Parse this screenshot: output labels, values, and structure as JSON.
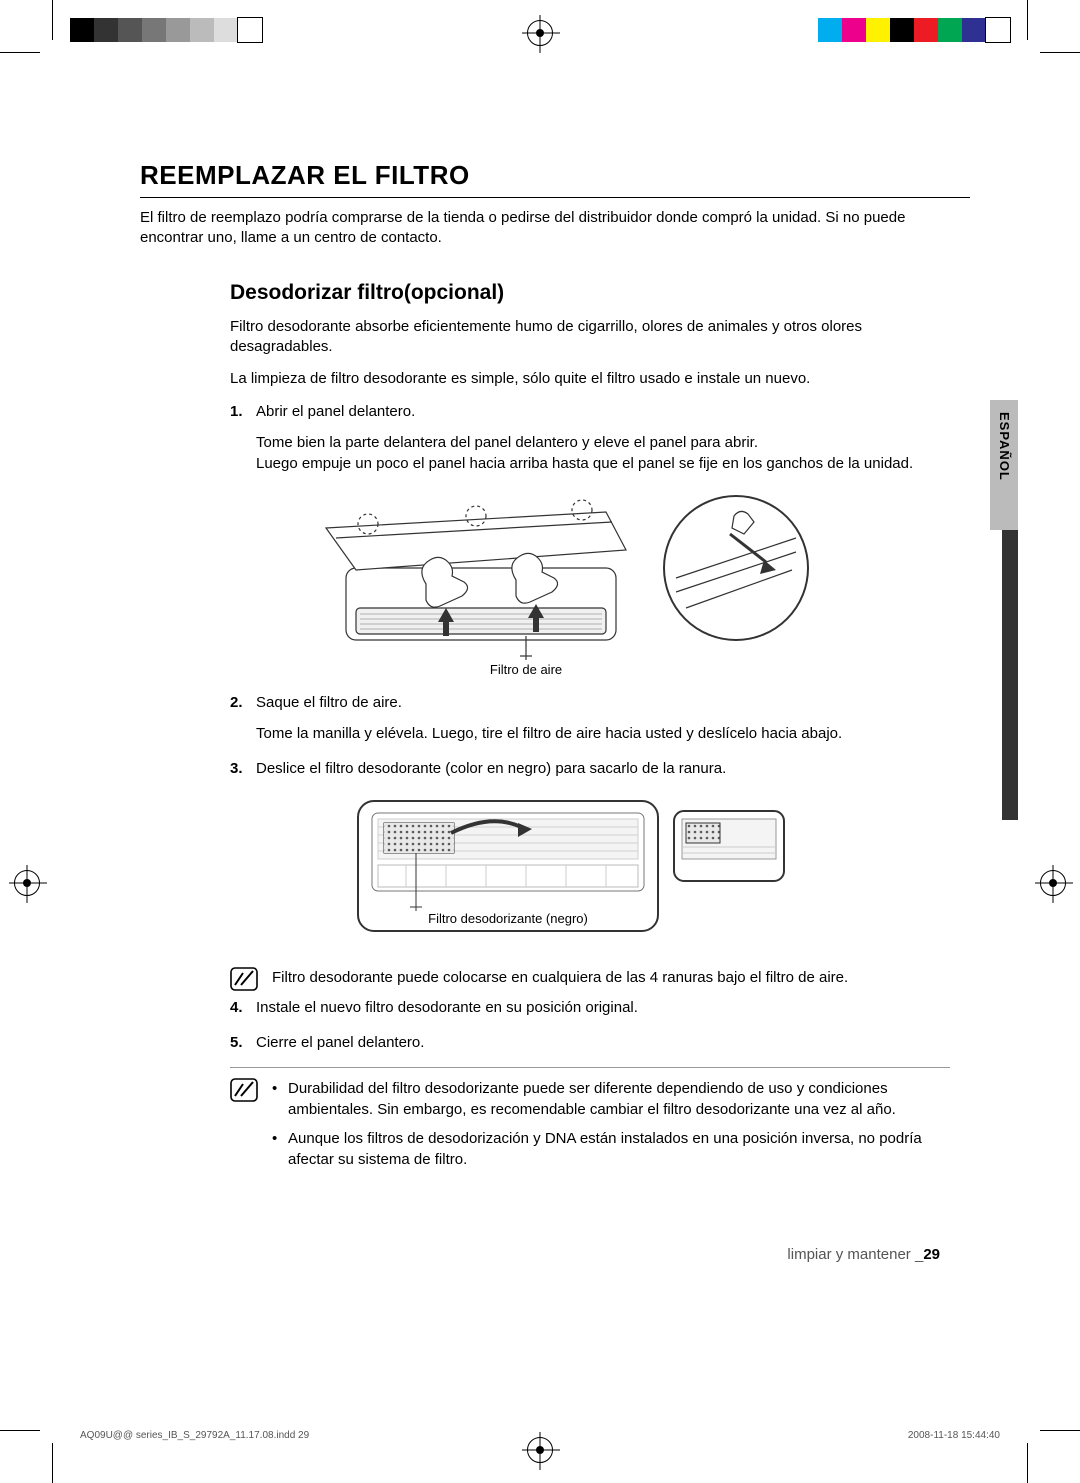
{
  "printer": {
    "colorbar_left": [
      "#000000",
      "#333333",
      "#555555",
      "#777777",
      "#999999",
      "#bbbbbb",
      "#dddddd",
      "#ffffff"
    ],
    "colorbar_right": [
      "#00aeef",
      "#ec008c",
      "#fff200",
      "#000000",
      "#ed1c24",
      "#00a651",
      "#2e3192",
      "#ffffff"
    ]
  },
  "side_tab": {
    "label": "ESPAÑOL"
  },
  "h1": "REEMPLAZAR EL FILTRO",
  "intro": "El filtro de reemplazo podría comprarse de la tienda o pedirse del distribuidor donde compró la unidad. Si no puede encontrar uno, llame a un centro de contacto.",
  "h2": "Desodorizar filtro(opcional)",
  "sub_p1": "Filtro desodorante absorbe eficientemente humo de cigarrillo, olores de animales y otros olores desagradables.",
  "sub_p2": "La limpieza de filtro desodorante es simple, sólo quite el filtro usado e instale un nuevo.",
  "steps": {
    "s1_title": "Abrir el panel delantero.",
    "s1_body": "Tome bien la parte delantera del panel delantero y eleve el panel para abrir.\nLuego empuje un poco el panel hacia arriba hasta que el panel se fije en los ganchos de la unidad.",
    "s2_title": "Saque el filtro de aire.",
    "s2_body": "Tome la manilla y elévela. Luego, tire el filtro de aire hacia usted y deslícelo hacia abajo.",
    "s3_title": "Deslice el filtro desodorante (color en negro) para sacarlo de la ranura.",
    "s4_title": "Instale el nuevo filtro desodorante en su posición original.",
    "s5_title": "Cierre el panel delantero."
  },
  "fig1_caption": "Filtro de aire",
  "fig2_caption": "Filtro desodorizante (negro)",
  "note_mid": "Filtro desodorante puede colocarse en cualquiera de las 4 ranuras bajo el filtro de aire.",
  "note_end_1": "Durabilidad del filtro desodorizante puede ser diferente dependiendo de uso y condiciones ambientales. Sin embargo, es recomendable cambiar el filtro desodorizante una vez al año.",
  "note_end_2": "Aunque los filtros de desodorización y DNA están instalados en una posición inversa, no podría afectar su sistema de filtro.",
  "footer_section_label": "limpiar y mantener _",
  "footer_section_page": "29",
  "imposition_left": "AQ09U@@ series_IB_S_29792A_11.17.08.indd   29",
  "imposition_right": "2008-11-18   15:44:40",
  "colors": {
    "text": "#000000",
    "muted": "#555555",
    "rule": "#000000",
    "thin_rule": "#999999",
    "figure_stroke": "#333333",
    "figure_fill": "#f4f4f4",
    "figure_grid": "#cfcfcf",
    "figure_dark": "#5a5a5a"
  }
}
